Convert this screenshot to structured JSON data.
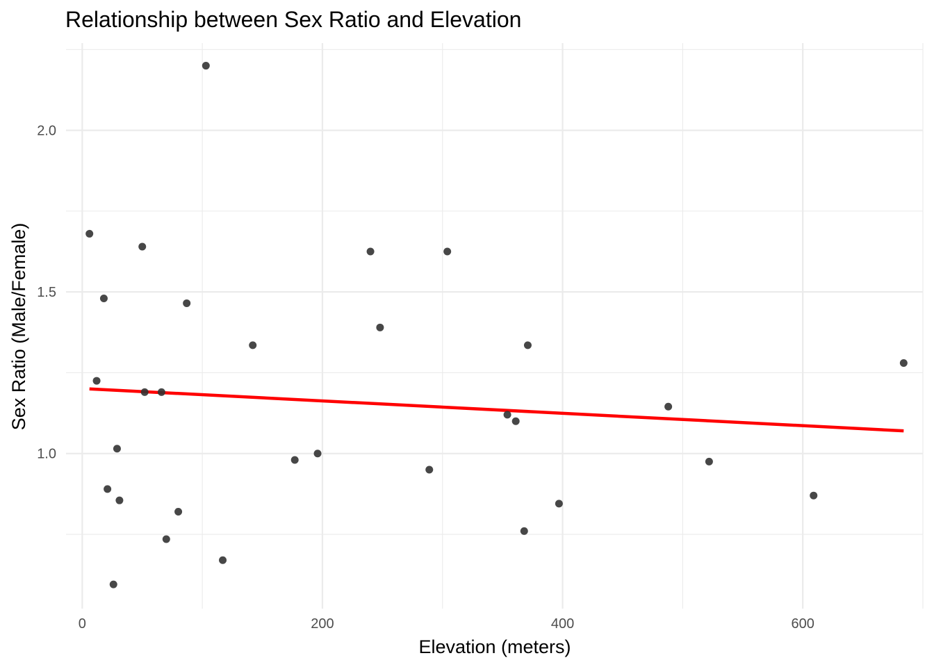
{
  "chart_data": {
    "type": "scatter",
    "title": "Relationship between Sex Ratio and Elevation",
    "xlabel": "Elevation (meters)",
    "ylabel": "Sex Ratio (Male/Female)",
    "xlim": [
      -13.5,
      700
    ],
    "ylim": [
      0.52,
      2.27
    ],
    "x_ticks": [
      0,
      200,
      400,
      600
    ],
    "x_tick_labels": [
      "0",
      "200",
      "400",
      "600"
    ],
    "y_ticks": [
      1.0,
      1.5,
      2.0
    ],
    "y_tick_labels": [
      "1.0",
      "1.5",
      "2.0"
    ],
    "grid": true,
    "point_color": "#333333",
    "trend_color": "#ff0000",
    "points": [
      {
        "x": 6,
        "y": 1.68
      },
      {
        "x": 12,
        "y": 1.225
      },
      {
        "x": 18,
        "y": 1.48
      },
      {
        "x": 21,
        "y": 0.89
      },
      {
        "x": 26,
        "y": 0.595
      },
      {
        "x": 29,
        "y": 1.015
      },
      {
        "x": 31,
        "y": 0.855
      },
      {
        "x": 50,
        "y": 1.64
      },
      {
        "x": 52,
        "y": 1.19
      },
      {
        "x": 66,
        "y": 1.19
      },
      {
        "x": 70,
        "y": 0.735
      },
      {
        "x": 80,
        "y": 0.82
      },
      {
        "x": 87,
        "y": 1.465
      },
      {
        "x": 103,
        "y": 2.2
      },
      {
        "x": 117,
        "y": 0.67
      },
      {
        "x": 142,
        "y": 1.335
      },
      {
        "x": 177,
        "y": 0.98
      },
      {
        "x": 196,
        "y": 1.0
      },
      {
        "x": 240,
        "y": 1.625
      },
      {
        "x": 248,
        "y": 1.39
      },
      {
        "x": 289,
        "y": 0.95
      },
      {
        "x": 304,
        "y": 1.625
      },
      {
        "x": 354,
        "y": 1.12
      },
      {
        "x": 361,
        "y": 1.1
      },
      {
        "x": 368,
        "y": 0.76
      },
      {
        "x": 371,
        "y": 1.335
      },
      {
        "x": 397,
        "y": 0.845
      },
      {
        "x": 488,
        "y": 1.145
      },
      {
        "x": 522,
        "y": 0.975
      },
      {
        "x": 609,
        "y": 0.87
      },
      {
        "x": 684,
        "y": 1.28
      }
    ],
    "trend_line": {
      "x": [
        6,
        684
      ],
      "y": [
        1.2,
        1.07
      ]
    }
  }
}
